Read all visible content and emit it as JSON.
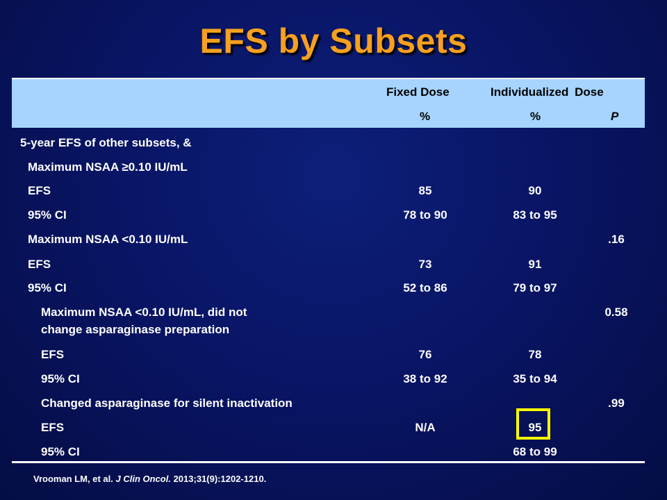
{
  "title": "EFS by Subsets",
  "header": {
    "col_fixed": "Fixed Dose",
    "col_individualized": "Individualized Dose",
    "sub_fixed": "%",
    "sub_individualized": "%",
    "sub_p": "P"
  },
  "rows": [
    {
      "label": "5-year EFS of other subsets, &",
      "fixed": "",
      "ind": "",
      "p": ""
    },
    {
      "label": "Maximum NSAA ≥0.10 IU/mL",
      "fixed": "",
      "ind": "",
      "p": ""
    },
    {
      "label": "EFS",
      "fixed": "85",
      "ind": "90",
      "p": ""
    },
    {
      "label": "95% CI",
      "fixed": "78 to 90",
      "ind": "83 to 95",
      "p": ""
    },
    {
      "label": "Maximum NSAA <0.10 IU/mL",
      "fixed": "",
      "ind": "",
      "p": ".16"
    },
    {
      "label": "EFS",
      "fixed": "73",
      "ind": "91",
      "p": ""
    },
    {
      "label": "95% CI",
      "fixed": "52 to 86",
      "ind": "79 to 97",
      "p": ""
    },
    {
      "label_line1": "Maximum NSAA <0.10 IU/mL, did not",
      "label_line2": "change asparaginase preparation",
      "fixed": "",
      "ind": "",
      "p": "0.58"
    },
    {
      "label": "EFS",
      "fixed": "76",
      "ind": "78",
      "p": ""
    },
    {
      "label": "95% CI",
      "fixed": "38 to 92",
      "ind": "35 to 94",
      "p": ""
    },
    {
      "label": "Changed asparaginase for silent inactivation",
      "fixed": "",
      "ind": "",
      "p": ".99"
    },
    {
      "label": "EFS",
      "fixed": "N/A",
      "ind": "95",
      "p": ""
    },
    {
      "label": "95% CI",
      "fixed": "",
      "ind": "68 to 99",
      "p": ""
    }
  ],
  "footnote": {
    "authors": "Vrooman LM, et al.",
    "journal": "J Clin Oncol.",
    "citation": "2013;31(9):1202-1210."
  },
  "colors": {
    "title": "#f5a020",
    "header_bg": "#a6d4ff",
    "highlight": "#ffff00",
    "background": "#091565"
  }
}
